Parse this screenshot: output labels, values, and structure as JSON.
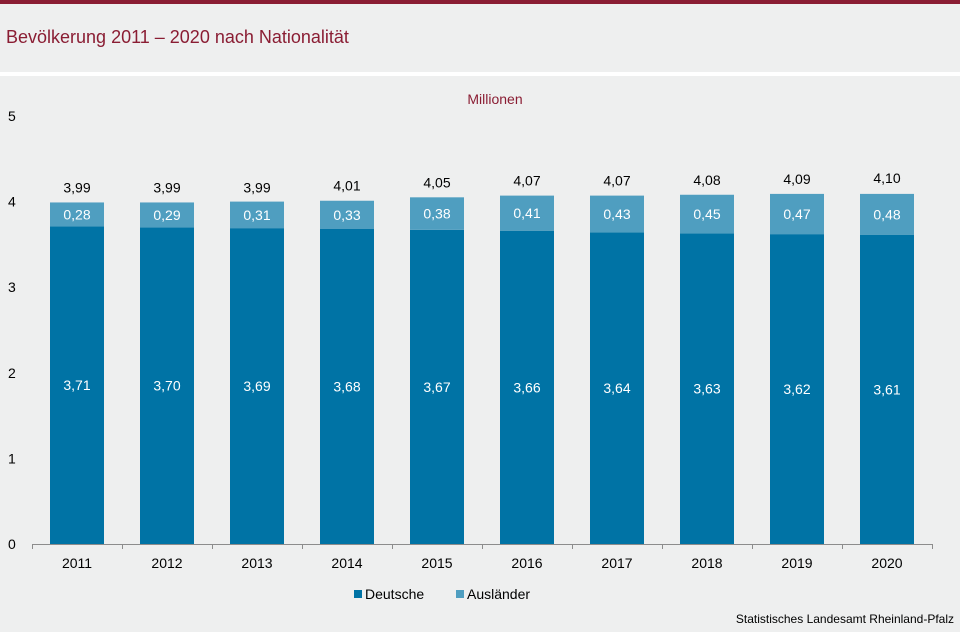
{
  "header": {
    "title": "Bevölkerung 2011 – 2020 nach Nationalität"
  },
  "colors": {
    "brand": "#8a1d33",
    "deutsche": "#0073a5",
    "auslaender": "#4f9ec0",
    "background": "#eeefef"
  },
  "chart_data": {
    "type": "bar",
    "stacked": true,
    "title": "Bevölkerung 2011 – 2020 nach Nationalität",
    "unit_label": "Millionen",
    "xlabel": "",
    "ylabel": "",
    "ylim": [
      0,
      5
    ],
    "yticks": [
      "0",
      "1",
      "2",
      "3",
      "4",
      "5"
    ],
    "grid": false,
    "legend_position": "bottom-center",
    "categories": [
      "2011",
      "2012",
      "2013",
      "2014",
      "2015",
      "2016",
      "2017",
      "2018",
      "2019",
      "2020"
    ],
    "series": [
      {
        "name": "Deutsche",
        "color": "#0073a5",
        "values": [
          3.71,
          3.7,
          3.69,
          3.68,
          3.67,
          3.66,
          3.64,
          3.63,
          3.62,
          3.61
        ],
        "labels": [
          "3,71",
          "3,70",
          "3,69",
          "3,68",
          "3,67",
          "3,66",
          "3,64",
          "3,63",
          "3,62",
          "3,61"
        ]
      },
      {
        "name": "Ausländer",
        "color": "#4f9ec0",
        "values": [
          0.28,
          0.29,
          0.31,
          0.33,
          0.38,
          0.41,
          0.43,
          0.45,
          0.47,
          0.48
        ],
        "labels": [
          "0,28",
          "0,29",
          "0,31",
          "0,33",
          "0,38",
          "0,41",
          "0,43",
          "0,45",
          "0,47",
          "0,48"
        ]
      }
    ],
    "totals": [
      3.99,
      3.99,
      3.99,
      4.01,
      4.05,
      4.07,
      4.07,
      4.08,
      4.09,
      4.1
    ],
    "total_labels": [
      "3,99",
      "3,99",
      "3,99",
      "4,01",
      "4,05",
      "4,07",
      "4,07",
      "4,08",
      "4,09",
      "4,10"
    ]
  },
  "footer": {
    "source": "Statistisches Landesamt  Rheinland-Pfalz"
  }
}
